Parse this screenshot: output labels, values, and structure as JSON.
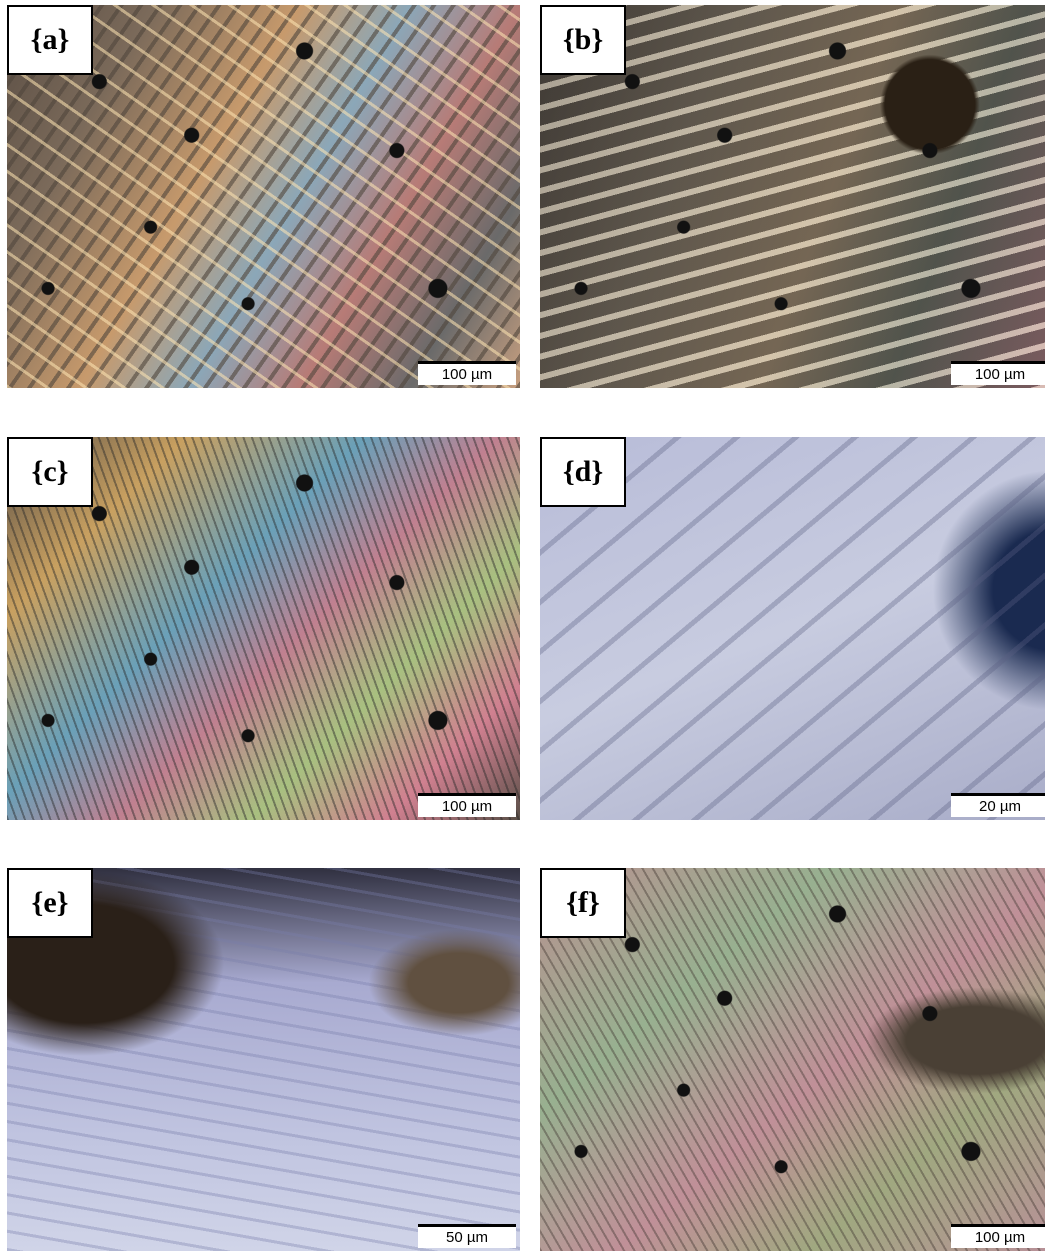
{
  "panels": [
    {
      "label": "{a}",
      "scale_bar": "100 µm"
    },
    {
      "label": "{b}",
      "scale_bar": "100 µm"
    },
    {
      "label": "{c}",
      "scale_bar": "100 µm"
    },
    {
      "label": "{d}",
      "scale_bar": "20 µm"
    },
    {
      "label": "{e}",
      "scale_bar": "50 µm"
    },
    {
      "label": "{f}",
      "scale_bar": "100 µm"
    }
  ]
}
